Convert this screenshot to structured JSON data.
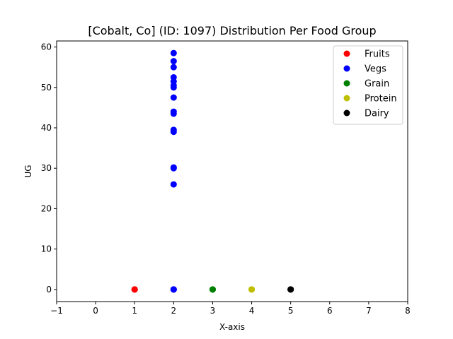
{
  "chart_data": {
    "type": "scatter",
    "title": "[Cobalt, Co] (ID: 1097) Distribution Per Food Group",
    "xlabel": "X-axis",
    "ylabel": "UG",
    "xlim": [
      -1,
      8
    ],
    "ylim": [
      -3,
      61.5
    ],
    "xticks": [
      -1,
      0,
      1,
      2,
      3,
      4,
      5,
      6,
      7,
      8
    ],
    "yticks": [
      0,
      10,
      20,
      30,
      40,
      50,
      60
    ],
    "grid": false,
    "legend_position": "top-right",
    "series": [
      {
        "name": "Fruits",
        "color": "#ff0000",
        "x": [
          1,
          1,
          1,
          1
        ],
        "y": [
          0,
          0,
          0,
          0
        ]
      },
      {
        "name": "Vegs",
        "color": "#0000ff",
        "x": [
          2,
          2,
          2,
          2,
          2,
          2,
          2,
          2,
          2,
          2,
          2,
          2,
          2,
          2,
          2,
          2,
          2,
          2,
          2
        ],
        "y": [
          58.5,
          56.5,
          55,
          52.5,
          51.5,
          50.5,
          50,
          47.5,
          44,
          43.5,
          39.5,
          39,
          30.2,
          30,
          26,
          0,
          0,
          0,
          0
        ]
      },
      {
        "name": "Grain",
        "color": "#008000",
        "x": [
          3,
          3,
          3
        ],
        "y": [
          0,
          0,
          0
        ]
      },
      {
        "name": "Protein",
        "color": "#bfbf00",
        "x": [
          4,
          4,
          4
        ],
        "y": [
          0,
          0,
          0
        ]
      },
      {
        "name": "Dairy",
        "color": "#000000",
        "x": [
          5,
          5,
          5
        ],
        "y": [
          0,
          0,
          0
        ]
      }
    ]
  }
}
